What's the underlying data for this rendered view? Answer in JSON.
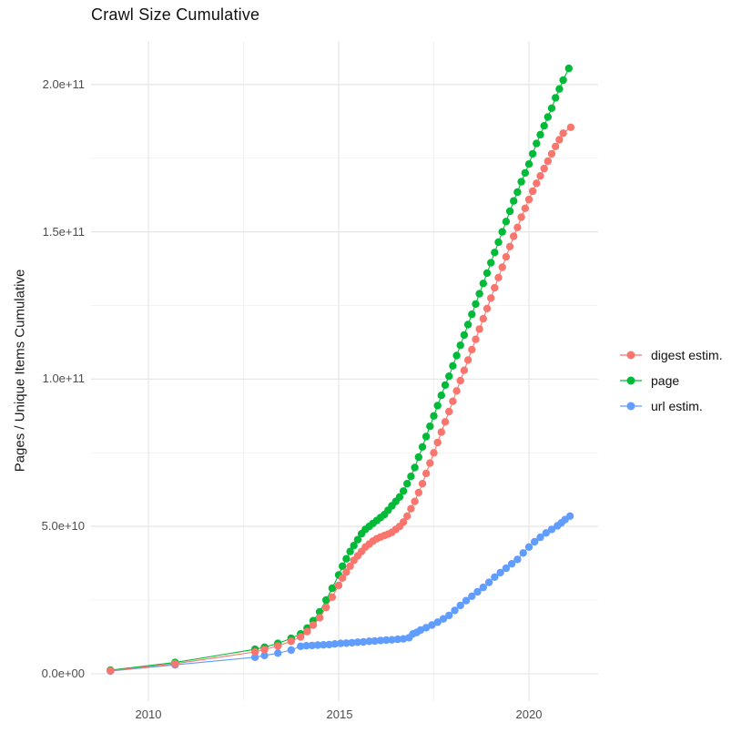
{
  "title": "Crawl Size Cumulative",
  "colors": {
    "digest": "#F8766D",
    "page": "#00BA38",
    "url": "#619CFF",
    "grid_major": "#E6E6E6",
    "grid_minor": "#F0F0F0",
    "axis_text": "#4D4D4D",
    "background": "#FFFFFF"
  },
  "y_axis": {
    "title": "Pages / Unique Items Cumulative",
    "ticks": [
      "0.0e+00",
      "5.0e+10",
      "1.0e+11",
      "1.5e+11",
      "2.0e+11"
    ]
  },
  "x_axis": {
    "ticks": [
      "2010",
      "2015",
      "2020"
    ]
  },
  "legend": {
    "items": [
      {
        "label": "digest estim.",
        "color": "#F8766D"
      },
      {
        "label": "page",
        "color": "#00BA38"
      },
      {
        "label": "url estim.",
        "color": "#619CFF"
      }
    ]
  },
  "chart_data": {
    "type": "scatter",
    "title": "Crawl Size Cumulative",
    "xlabel": "",
    "ylabel": "Pages / Unique Items Cumulative",
    "grid": true,
    "legend_position": "right",
    "x_ticks_years": [
      2010,
      2015,
      2020
    ],
    "y_ticks_billions": [
      0,
      50,
      100,
      150,
      200
    ],
    "y_tick_labels": [
      "0.0e+00",
      "5.0e+10",
      "1.0e+11",
      "1.5e+11",
      "2.0e+11"
    ],
    "x_range_years": [
      2008.49,
      2021.82
    ],
    "y_range_billions": [
      -9.3,
      214.8
    ],
    "units_note": "points are [year, cumulative count in billions (1e9)]",
    "series": [
      {
        "name": "digest estim.",
        "color": "#F8766D",
        "points": [
          [
            2009,
            1.0
          ],
          [
            2010.7,
            3.4
          ],
          [
            2012.8,
            7.4
          ],
          [
            2013.05,
            8.2
          ],
          [
            2013.4,
            9.4
          ],
          [
            2013.75,
            11
          ],
          [
            2014,
            12.5
          ],
          [
            2014.17,
            14.3
          ],
          [
            2014.33,
            16.5
          ],
          [
            2014.5,
            19
          ],
          [
            2014.67,
            22.5
          ],
          [
            2014.83,
            26
          ],
          [
            2015,
            30
          ],
          [
            2015.1,
            32.5
          ],
          [
            2015.2,
            34.5
          ],
          [
            2015.3,
            36.5
          ],
          [
            2015.4,
            38.5
          ],
          [
            2015.5,
            40
          ],
          [
            2015.6,
            41.5
          ],
          [
            2015.7,
            43
          ],
          [
            2015.8,
            44
          ],
          [
            2015.9,
            45
          ],
          [
            2016,
            45.8
          ],
          [
            2016.1,
            46.4
          ],
          [
            2016.2,
            46.9
          ],
          [
            2016.3,
            47.4
          ],
          [
            2016.4,
            48
          ],
          [
            2016.5,
            49
          ],
          [
            2016.6,
            50
          ],
          [
            2016.7,
            51.5
          ],
          [
            2016.8,
            53.5
          ],
          [
            2016.9,
            56
          ],
          [
            2017,
            58.5
          ],
          [
            2017.1,
            61.5
          ],
          [
            2017.2,
            64.5
          ],
          [
            2017.3,
            68
          ],
          [
            2017.4,
            71.5
          ],
          [
            2017.5,
            75
          ],
          [
            2017.6,
            78.5
          ],
          [
            2017.7,
            82
          ],
          [
            2017.8,
            85.5
          ],
          [
            2017.9,
            89
          ],
          [
            2018,
            92.5
          ],
          [
            2018.1,
            96
          ],
          [
            2018.2,
            99.5
          ],
          [
            2018.3,
            103
          ],
          [
            2018.4,
            106.5
          ],
          [
            2018.5,
            110
          ],
          [
            2018.6,
            113.5
          ],
          [
            2018.7,
            117
          ],
          [
            2018.8,
            120.5
          ],
          [
            2018.9,
            124
          ],
          [
            2019,
            127.5
          ],
          [
            2019.1,
            131
          ],
          [
            2019.2,
            134.5
          ],
          [
            2019.3,
            138
          ],
          [
            2019.4,
            141.5
          ],
          [
            2019.5,
            145
          ],
          [
            2019.6,
            148.5
          ],
          [
            2019.7,
            151.5
          ],
          [
            2019.8,
            155
          ],
          [
            2019.9,
            158
          ],
          [
            2020,
            161
          ],
          [
            2020.1,
            163.8
          ],
          [
            2020.2,
            166.5
          ],
          [
            2020.3,
            169
          ],
          [
            2020.4,
            171.5
          ],
          [
            2020.5,
            174
          ],
          [
            2020.6,
            176.5
          ],
          [
            2020.7,
            179
          ],
          [
            2020.8,
            181.3
          ],
          [
            2020.9,
            183.5
          ],
          [
            2021.1,
            185.5
          ]
        ]
      },
      {
        "name": "page",
        "color": "#00BA38",
        "points": [
          [
            2009,
            1.2
          ],
          [
            2010.7,
            3.8
          ],
          [
            2012.8,
            8.3
          ],
          [
            2013.05,
            9
          ],
          [
            2013.4,
            10.3
          ],
          [
            2013.75,
            12
          ],
          [
            2014,
            13.5
          ],
          [
            2014.17,
            15.5
          ],
          [
            2014.33,
            18
          ],
          [
            2014.5,
            21
          ],
          [
            2014.67,
            25
          ],
          [
            2014.83,
            29
          ],
          [
            2015,
            33.5
          ],
          [
            2015.1,
            36.5
          ],
          [
            2015.2,
            39
          ],
          [
            2015.3,
            41.5
          ],
          [
            2015.4,
            43.5
          ],
          [
            2015.5,
            45.5
          ],
          [
            2015.6,
            47.5
          ],
          [
            2015.7,
            49
          ],
          [
            2015.8,
            50
          ],
          [
            2015.9,
            51
          ],
          [
            2016,
            52
          ],
          [
            2016.1,
            53
          ],
          [
            2016.2,
            54
          ],
          [
            2016.3,
            55.5
          ],
          [
            2016.4,
            57
          ],
          [
            2016.5,
            58.5
          ],
          [
            2016.6,
            60
          ],
          [
            2016.7,
            62
          ],
          [
            2016.8,
            64.5
          ],
          [
            2016.9,
            67
          ],
          [
            2017,
            70
          ],
          [
            2017.1,
            73.5
          ],
          [
            2017.2,
            77
          ],
          [
            2017.3,
            80.5
          ],
          [
            2017.4,
            84
          ],
          [
            2017.5,
            87.5
          ],
          [
            2017.6,
            91
          ],
          [
            2017.7,
            94.5
          ],
          [
            2017.8,
            98
          ],
          [
            2017.9,
            101
          ],
          [
            2018,
            104.5
          ],
          [
            2018.1,
            108
          ],
          [
            2018.2,
            111.5
          ],
          [
            2018.3,
            115
          ],
          [
            2018.4,
            118.5
          ],
          [
            2018.5,
            122
          ],
          [
            2018.6,
            125.5
          ],
          [
            2018.7,
            129
          ],
          [
            2018.8,
            132.5
          ],
          [
            2018.9,
            136
          ],
          [
            2019,
            139.5
          ],
          [
            2019.1,
            143
          ],
          [
            2019.2,
            146.5
          ],
          [
            2019.3,
            150
          ],
          [
            2019.4,
            153.5
          ],
          [
            2019.5,
            157
          ],
          [
            2019.6,
            160.5
          ],
          [
            2019.7,
            163.5
          ],
          [
            2019.8,
            167
          ],
          [
            2019.9,
            170
          ],
          [
            2020,
            173
          ],
          [
            2020.1,
            176.5
          ],
          [
            2020.2,
            180
          ],
          [
            2020.3,
            183
          ],
          [
            2020.4,
            186
          ],
          [
            2020.5,
            189
          ],
          [
            2020.6,
            192
          ],
          [
            2020.7,
            195.5
          ],
          [
            2020.8,
            198.5
          ],
          [
            2020.9,
            201.5
          ],
          [
            2021.05,
            205.5
          ]
        ]
      },
      {
        "name": "url estim.",
        "color": "#619CFF",
        "points": [
          [
            2009,
            0.9
          ],
          [
            2010.7,
            3.0
          ],
          [
            2012.8,
            5.6
          ],
          [
            2013.05,
            6.2
          ],
          [
            2013.4,
            7.0
          ],
          [
            2013.75,
            8.0
          ],
          [
            2014,
            9.3
          ],
          [
            2014.15,
            9.5
          ],
          [
            2014.3,
            9.6
          ],
          [
            2014.45,
            9.7
          ],
          [
            2014.6,
            9.8
          ],
          [
            2014.75,
            9.9
          ],
          [
            2014.9,
            10.1
          ],
          [
            2015.05,
            10.3
          ],
          [
            2015.2,
            10.4
          ],
          [
            2015.35,
            10.5
          ],
          [
            2015.5,
            10.7
          ],
          [
            2015.65,
            10.8
          ],
          [
            2015.8,
            11
          ],
          [
            2015.95,
            11.1
          ],
          [
            2016.1,
            11.3
          ],
          [
            2016.25,
            11.4
          ],
          [
            2016.4,
            11.5
          ],
          [
            2016.55,
            11.7
          ],
          [
            2016.7,
            11.8
          ],
          [
            2016.85,
            12.2
          ],
          [
            2016.95,
            13.5
          ],
          [
            2017.05,
            14
          ],
          [
            2017.15,
            14.8
          ],
          [
            2017.3,
            15.6
          ],
          [
            2017.45,
            16.5
          ],
          [
            2017.6,
            17.5
          ],
          [
            2017.75,
            18.6
          ],
          [
            2017.9,
            19.8
          ],
          [
            2018.05,
            21.5
          ],
          [
            2018.2,
            23.2
          ],
          [
            2018.35,
            24.8
          ],
          [
            2018.5,
            26.3
          ],
          [
            2018.65,
            27.8
          ],
          [
            2018.8,
            29.3
          ],
          [
            2018.95,
            31
          ],
          [
            2019.1,
            32.8
          ],
          [
            2019.25,
            34.3
          ],
          [
            2019.4,
            35.8
          ],
          [
            2019.55,
            37.3
          ],
          [
            2019.7,
            38.8
          ],
          [
            2019.85,
            41
          ],
          [
            2020,
            43
          ],
          [
            2020.15,
            44.8
          ],
          [
            2020.3,
            46.3
          ],
          [
            2020.45,
            47.8
          ],
          [
            2020.6,
            49
          ],
          [
            2020.75,
            50.2
          ],
          [
            2020.85,
            51.2
          ],
          [
            2020.95,
            52.3
          ],
          [
            2021.08,
            53.5
          ]
        ]
      }
    ]
  }
}
